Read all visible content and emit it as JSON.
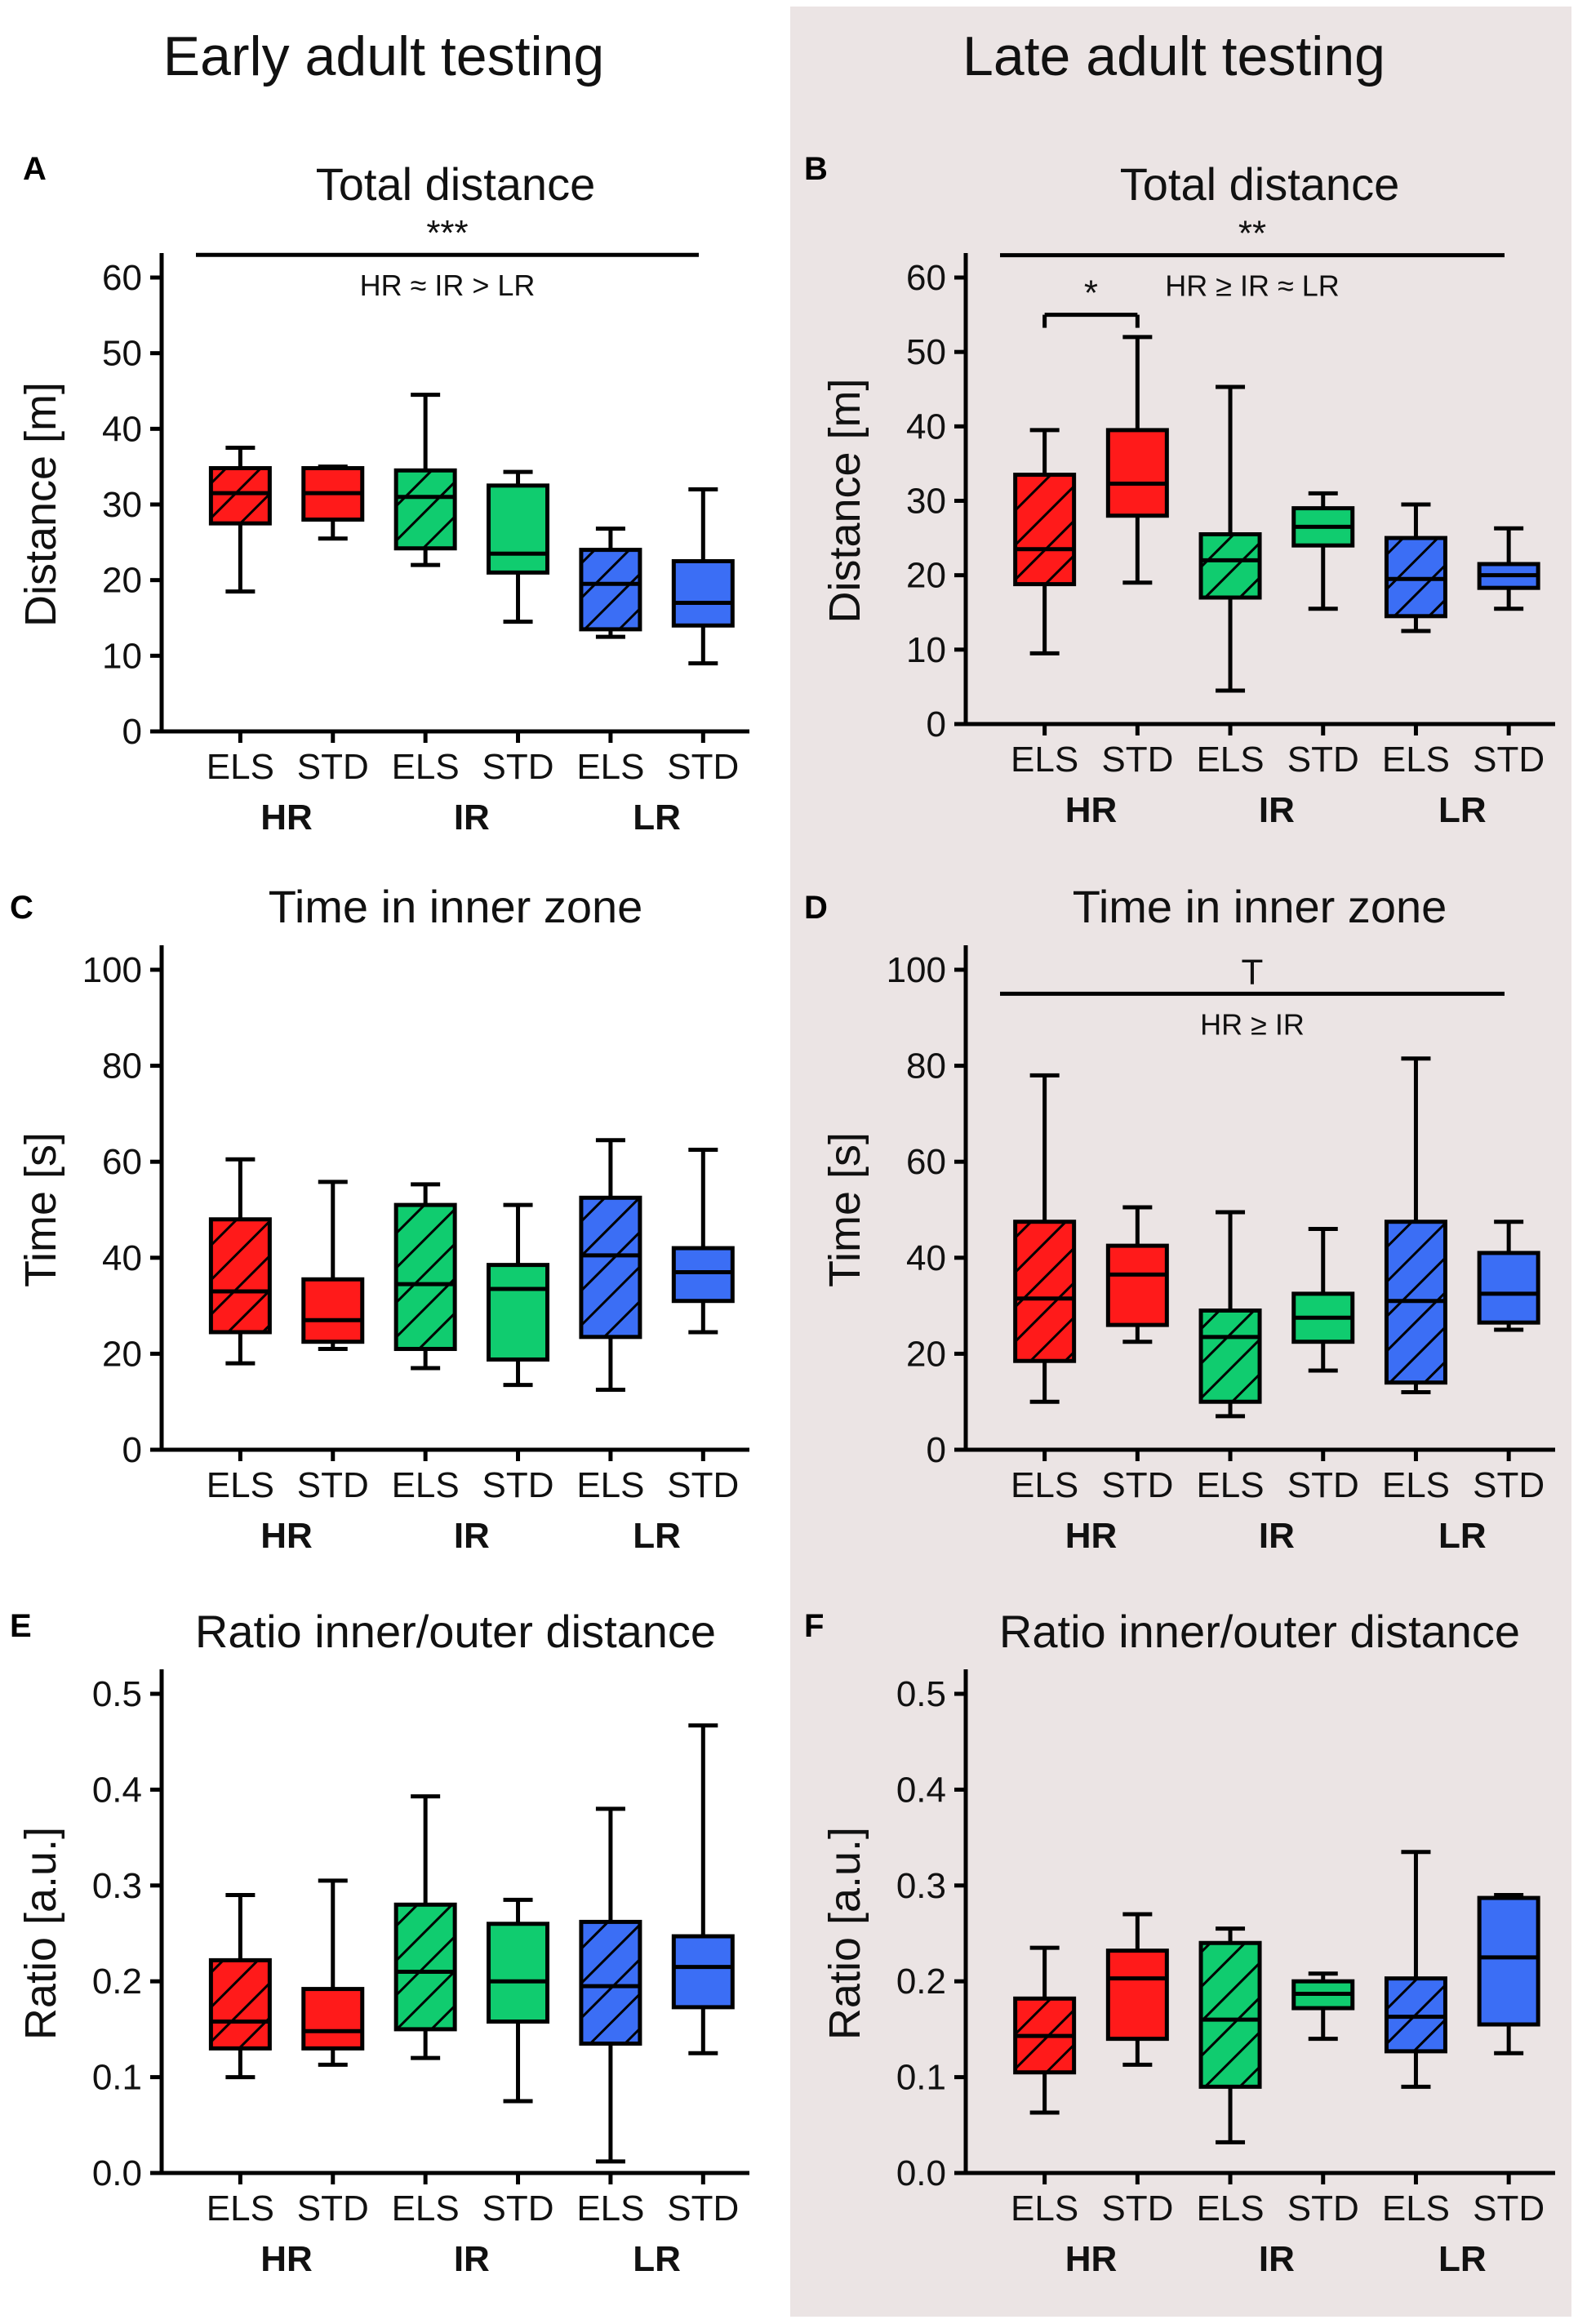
{
  "figure": {
    "column_titles": [
      "Early adult testing",
      "Late adult testing"
    ],
    "colors": {
      "HR": "#ff1a1a",
      "IR": "#10cc6f",
      "LR": "#3b6ef5",
      "late_background": "#ebe4e4",
      "ink": "#000000"
    }
  },
  "chart_data": [
    {
      "panel": "A",
      "column": "Early adult testing",
      "type": "box",
      "title": "Total distance",
      "ylabel": "Distance [m]",
      "ylim": [
        0,
        60
      ],
      "yticks": [
        0,
        10,
        20,
        30,
        40,
        50,
        60
      ],
      "categories": [
        "ELS",
        "STD",
        "ELS",
        "STD",
        "ELS",
        "STD"
      ],
      "groups": [
        "HR",
        "IR",
        "LR"
      ],
      "boxes": [
        {
          "group": "HR",
          "condition": "ELS",
          "hatched": true,
          "min": 18.5,
          "q1": 27.5,
          "median": 31.5,
          "q3": 34.8,
          "max": 37.5
        },
        {
          "group": "HR",
          "condition": "STD",
          "hatched": false,
          "min": 25.5,
          "q1": 28.0,
          "median": 31.5,
          "q3": 34.8,
          "max": 35.0
        },
        {
          "group": "IR",
          "condition": "ELS",
          "hatched": true,
          "min": 22.0,
          "q1": 24.2,
          "median": 31.0,
          "q3": 34.5,
          "max": 44.5
        },
        {
          "group": "IR",
          "condition": "STD",
          "hatched": false,
          "min": 14.5,
          "q1": 21.0,
          "median": 23.5,
          "q3": 32.5,
          "max": 34.3
        },
        {
          "group": "LR",
          "condition": "ELS",
          "hatched": true,
          "min": 12.5,
          "q1": 13.5,
          "median": 19.5,
          "q3": 24.0,
          "max": 26.8
        },
        {
          "group": "LR",
          "condition": "STD",
          "hatched": false,
          "min": 9.0,
          "q1": 14.0,
          "median": 17.0,
          "q3": 22.5,
          "max": 32.0
        }
      ],
      "annotations": [
        {
          "type": "bracket",
          "from": 0,
          "to": 5,
          "y": 63,
          "label": "***",
          "note": "HR ≈ IR > LR"
        }
      ]
    },
    {
      "panel": "B",
      "column": "Late adult testing",
      "type": "box",
      "title": "Total distance",
      "ylabel": "Distance [m]",
      "ylim": [
        0,
        60
      ],
      "yticks": [
        0,
        10,
        20,
        30,
        40,
        50,
        60
      ],
      "categories": [
        "ELS",
        "STD",
        "ELS",
        "STD",
        "ELS",
        "STD"
      ],
      "groups": [
        "HR",
        "IR",
        "LR"
      ],
      "boxes": [
        {
          "group": "HR",
          "condition": "ELS",
          "hatched": true,
          "min": 9.5,
          "q1": 18.8,
          "median": 23.5,
          "q3": 33.5,
          "max": 39.5
        },
        {
          "group": "HR",
          "condition": "STD",
          "hatched": false,
          "min": 19.0,
          "q1": 28.0,
          "median": 32.3,
          "q3": 39.5,
          "max": 52.0
        },
        {
          "group": "IR",
          "condition": "ELS",
          "hatched": true,
          "min": 4.5,
          "q1": 17.0,
          "median": 22.0,
          "q3": 25.5,
          "max": 45.3
        },
        {
          "group": "IR",
          "condition": "STD",
          "hatched": false,
          "min": 15.5,
          "q1": 24.0,
          "median": 26.5,
          "q3": 29.0,
          "max": 31.0
        },
        {
          "group": "LR",
          "condition": "ELS",
          "hatched": true,
          "min": 12.5,
          "q1": 14.5,
          "median": 19.5,
          "q3": 25.0,
          "max": 29.5
        },
        {
          "group": "LR",
          "condition": "STD",
          "hatched": false,
          "min": 15.5,
          "q1": 18.3,
          "median": 20.0,
          "q3": 21.5,
          "max": 26.3
        }
      ],
      "annotations": [
        {
          "type": "bracket",
          "from": 0,
          "to": 5,
          "y": 63,
          "label": "**",
          "note": "HR ≥ IR ≈ LR"
        },
        {
          "type": "bracket",
          "from": 0,
          "to": 1,
          "y": 55,
          "label": "*",
          "note": "",
          "ticks": true
        }
      ]
    },
    {
      "panel": "C",
      "column": "Early adult testing",
      "type": "box",
      "title": "Time in inner zone",
      "ylabel": "Time [s]",
      "ylim": [
        0,
        100
      ],
      "yticks": [
        0,
        20,
        40,
        60,
        80,
        100
      ],
      "categories": [
        "ELS",
        "STD",
        "ELS",
        "STD",
        "ELS",
        "STD"
      ],
      "groups": [
        "HR",
        "IR",
        "LR"
      ],
      "boxes": [
        {
          "group": "HR",
          "condition": "ELS",
          "hatched": true,
          "min": 18.0,
          "q1": 24.5,
          "median": 33.0,
          "q3": 48.0,
          "max": 60.5
        },
        {
          "group": "HR",
          "condition": "STD",
          "hatched": false,
          "min": 21.0,
          "q1": 22.5,
          "median": 27.0,
          "q3": 35.5,
          "max": 55.8
        },
        {
          "group": "IR",
          "condition": "ELS",
          "hatched": true,
          "min": 17.0,
          "q1": 21.0,
          "median": 34.5,
          "q3": 51.0,
          "max": 55.3
        },
        {
          "group": "IR",
          "condition": "STD",
          "hatched": false,
          "min": 13.5,
          "q1": 18.8,
          "median": 33.5,
          "q3": 38.5,
          "max": 51.0
        },
        {
          "group": "LR",
          "condition": "ELS",
          "hatched": true,
          "min": 12.5,
          "q1": 23.5,
          "median": 40.5,
          "q3": 52.5,
          "max": 64.5
        },
        {
          "group": "LR",
          "condition": "STD",
          "hatched": false,
          "min": 24.5,
          "q1": 31.0,
          "median": 37.0,
          "q3": 42.0,
          "max": 62.5
        }
      ],
      "annotations": []
    },
    {
      "panel": "D",
      "column": "Late adult testing",
      "type": "box",
      "title": "Time in inner zone",
      "ylabel": "Time [s]",
      "ylim": [
        0,
        100
      ],
      "yticks": [
        0,
        20,
        40,
        60,
        80,
        100
      ],
      "categories": [
        "ELS",
        "STD",
        "ELS",
        "STD",
        "ELS",
        "STD"
      ],
      "groups": [
        "HR",
        "IR",
        "LR"
      ],
      "boxes": [
        {
          "group": "HR",
          "condition": "ELS",
          "hatched": true,
          "min": 10.0,
          "q1": 18.5,
          "median": 31.5,
          "q3": 47.5,
          "max": 78.0
        },
        {
          "group": "HR",
          "condition": "STD",
          "hatched": false,
          "min": 22.5,
          "q1": 26.0,
          "median": 36.5,
          "q3": 42.5,
          "max": 50.5
        },
        {
          "group": "IR",
          "condition": "ELS",
          "hatched": true,
          "min": 7.0,
          "q1": 10.0,
          "median": 23.5,
          "q3": 29.0,
          "max": 49.5
        },
        {
          "group": "IR",
          "condition": "STD",
          "hatched": false,
          "min": 16.5,
          "q1": 22.5,
          "median": 27.5,
          "q3": 32.5,
          "max": 46.0
        },
        {
          "group": "LR",
          "condition": "ELS",
          "hatched": true,
          "min": 12.0,
          "q1": 14.0,
          "median": 31.0,
          "q3": 47.5,
          "max": 81.5
        },
        {
          "group": "LR",
          "condition": "STD",
          "hatched": false,
          "min": 25.0,
          "q1": 26.5,
          "median": 32.5,
          "q3": 41.0,
          "max": 47.5
        }
      ],
      "annotations": [
        {
          "type": "bracket",
          "from": 0,
          "to": 5,
          "y": 95,
          "label": "T",
          "note": "HR ≥ IR"
        }
      ]
    },
    {
      "panel": "E",
      "column": "Early adult testing",
      "type": "box",
      "title": "Ratio inner/outer distance",
      "ylabel": "Ratio [a.u.]",
      "ylim": [
        0,
        0.5
      ],
      "yticks": [
        "0.0",
        "0.1",
        "0.2",
        "0.3",
        "0.4",
        "0.5"
      ],
      "categories": [
        "ELS",
        "STD",
        "ELS",
        "STD",
        "ELS",
        "STD"
      ],
      "groups": [
        "HR",
        "IR",
        "LR"
      ],
      "boxes": [
        {
          "group": "HR",
          "condition": "ELS",
          "hatched": true,
          "min": 0.1,
          "q1": 0.13,
          "median": 0.158,
          "q3": 0.222,
          "max": 0.29
        },
        {
          "group": "HR",
          "condition": "STD",
          "hatched": false,
          "min": 0.113,
          "q1": 0.13,
          "median": 0.148,
          "q3": 0.192,
          "max": 0.305
        },
        {
          "group": "IR",
          "condition": "ELS",
          "hatched": true,
          "min": 0.12,
          "q1": 0.15,
          "median": 0.21,
          "q3": 0.28,
          "max": 0.393
        },
        {
          "group": "IR",
          "condition": "STD",
          "hatched": false,
          "min": 0.075,
          "q1": 0.158,
          "median": 0.2,
          "q3": 0.26,
          "max": 0.285
        },
        {
          "group": "LR",
          "condition": "ELS",
          "hatched": true,
          "min": 0.012,
          "q1": 0.135,
          "median": 0.195,
          "q3": 0.262,
          "max": 0.38
        },
        {
          "group": "LR",
          "condition": "STD",
          "hatched": false,
          "min": 0.125,
          "q1": 0.173,
          "median": 0.215,
          "q3": 0.247,
          "max": 0.467
        }
      ],
      "annotations": []
    },
    {
      "panel": "F",
      "column": "Late adult testing",
      "type": "box",
      "title": "Ratio inner/outer distance",
      "ylabel": "Ratio [a.u.]",
      "ylim": [
        0,
        0.5
      ],
      "yticks": [
        "0.0",
        "0.1",
        "0.2",
        "0.3",
        "0.4",
        "0.5"
      ],
      "categories": [
        "ELS",
        "STD",
        "ELS",
        "STD",
        "ELS",
        "STD"
      ],
      "groups": [
        "HR",
        "IR",
        "LR"
      ],
      "boxes": [
        {
          "group": "HR",
          "condition": "ELS",
          "hatched": true,
          "min": 0.063,
          "q1": 0.105,
          "median": 0.143,
          "q3": 0.182,
          "max": 0.235
        },
        {
          "group": "HR",
          "condition": "STD",
          "hatched": false,
          "min": 0.113,
          "q1": 0.14,
          "median": 0.203,
          "q3": 0.232,
          "max": 0.27
        },
        {
          "group": "IR",
          "condition": "ELS",
          "hatched": true,
          "min": 0.032,
          "q1": 0.09,
          "median": 0.16,
          "q3": 0.24,
          "max": 0.255
        },
        {
          "group": "IR",
          "condition": "STD",
          "hatched": false,
          "min": 0.14,
          "q1": 0.172,
          "median": 0.187,
          "q3": 0.2,
          "max": 0.208
        },
        {
          "group": "LR",
          "condition": "ELS",
          "hatched": true,
          "min": 0.09,
          "q1": 0.127,
          "median": 0.163,
          "q3": 0.203,
          "max": 0.335
        },
        {
          "group": "LR",
          "condition": "STD",
          "hatched": false,
          "min": 0.125,
          "q1": 0.155,
          "median": 0.225,
          "q3": 0.287,
          "max": 0.29
        }
      ],
      "annotations": []
    }
  ]
}
